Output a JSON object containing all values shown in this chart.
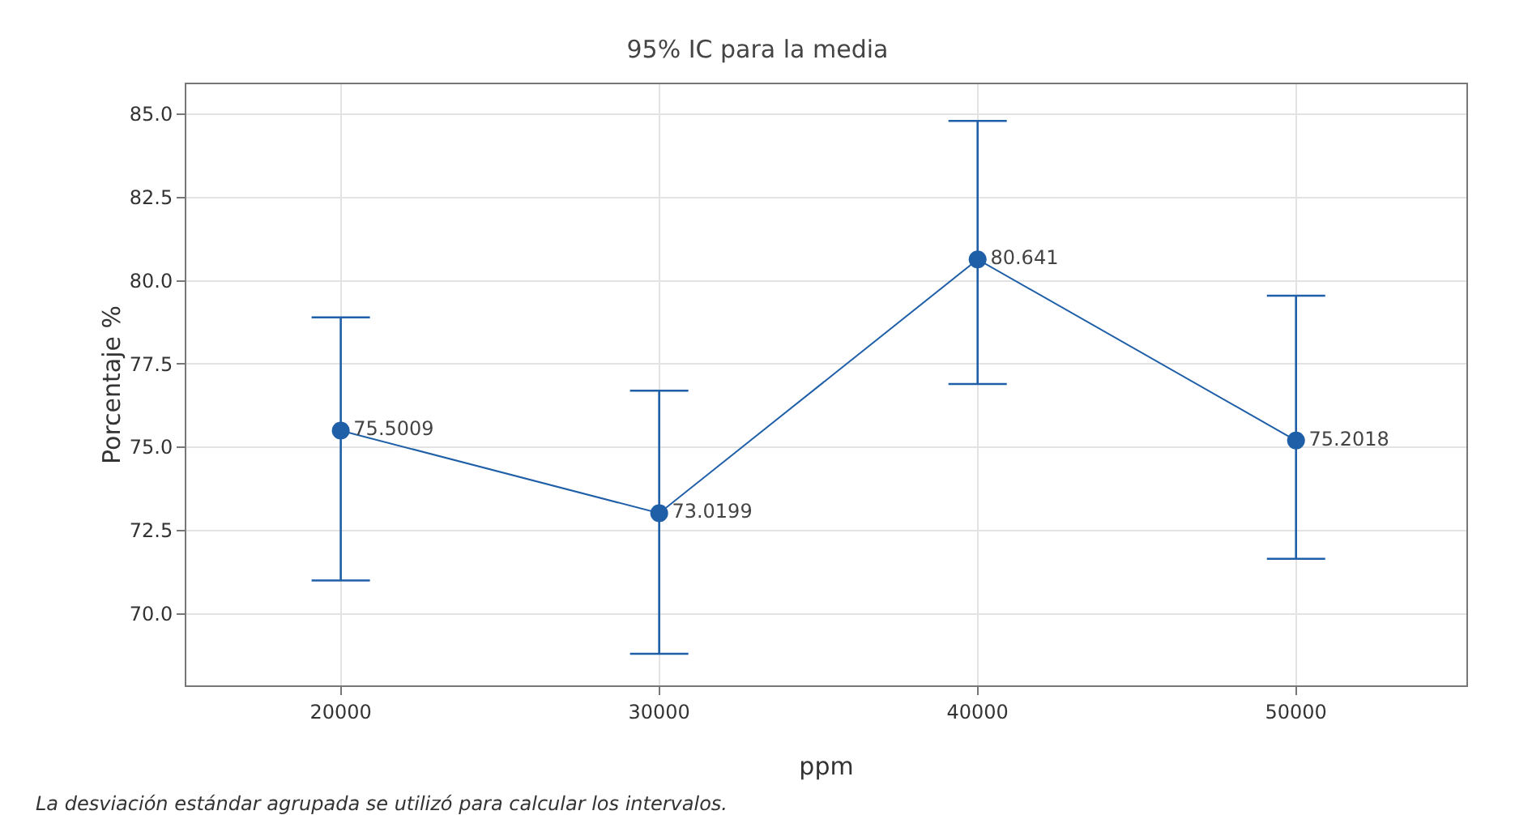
{
  "chart_data": {
    "type": "line",
    "title": "95% IC para la media",
    "xlabel": "ppm",
    "ylabel": "Porcentaje %",
    "x": [
      20000,
      30000,
      40000,
      50000
    ],
    "series": [
      {
        "color": "#1f5fa8",
        "values": [
          75.5009,
          73.0199,
          80.641,
          75.2018
        ],
        "errors": [
          [
            71.0,
            78.9
          ],
          [
            68.8,
            76.7
          ],
          [
            76.9,
            84.8
          ],
          [
            71.65,
            79.55
          ]
        ]
      }
    ],
    "data_labels": true,
    "marker": "circle",
    "line_style": "solid",
    "grid": true,
    "xlim": [
      15150,
      55350
    ],
    "xticks": [
      20000,
      30000,
      40000,
      50000
    ],
    "ylim": [
      67.85,
      85.9
    ],
    "yticks": [
      {
        "value": 70,
        "label": "70.0"
      },
      {
        "value": 72.5,
        "label": "72.5"
      },
      {
        "value": 75,
        "label": "75.0"
      },
      {
        "value": 77.5,
        "label": "77.5"
      },
      {
        "value": 80,
        "label": "80.0"
      },
      {
        "value": 82.5,
        "label": "82.5"
      },
      {
        "value": 85,
        "label": "85.0"
      }
    ],
    "annotations": [
      "La desviación estándar agrupada se utilizó para calcular los intervalos."
    ]
  }
}
